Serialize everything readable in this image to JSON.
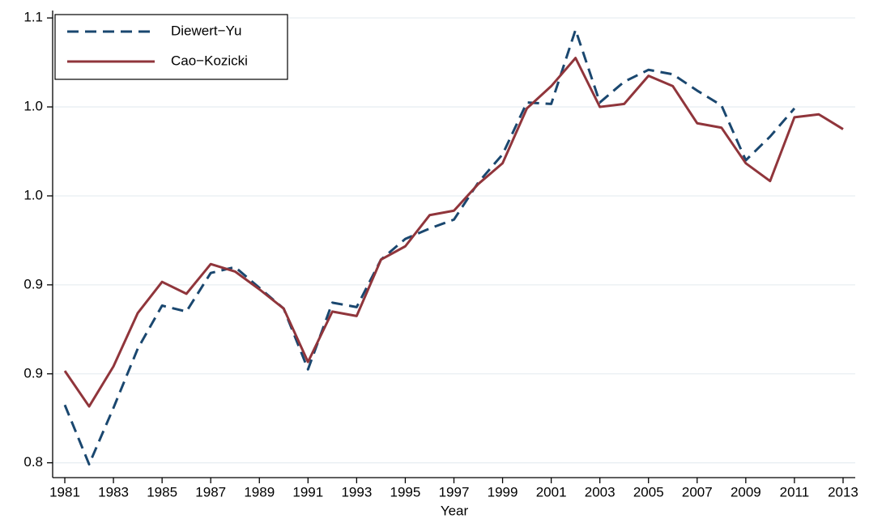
{
  "chart_data": {
    "type": "line",
    "xlabel": "Year",
    "x": [
      1981,
      1982,
      1983,
      1984,
      1985,
      1986,
      1987,
      1988,
      1989,
      1990,
      1991,
      1992,
      1993,
      1994,
      1995,
      1996,
      1997,
      1998,
      1999,
      2000,
      2001,
      2002,
      2003,
      2004,
      2005,
      2006,
      2007,
      2008,
      2009,
      2010,
      2011,
      2012,
      2013
    ],
    "series": [
      {
        "name": "Diewert−Yu",
        "color": "#1a476f",
        "dash": true,
        "values": [
          0.839,
          0.799,
          0.837,
          0.877,
          0.906,
          0.902,
          0.928,
          0.932,
          0.918,
          0.904,
          0.863,
          0.908,
          0.905,
          0.937,
          0.951,
          0.958,
          0.964,
          0.989,
          1.008,
          1.043,
          1.042,
          1.092,
          1.043,
          1.057,
          1.065,
          1.062,
          1.051,
          1.041,
          1.004,
          1.02,
          1.039,
          null,
          null
        ]
      },
      {
        "name": "Cao−Kozicki",
        "color": "#90353b",
        "dash": false,
        "values": [
          0.862,
          0.838,
          0.865,
          0.901,
          0.922,
          0.914,
          0.934,
          0.929,
          0.917,
          0.904,
          0.868,
          0.902,
          0.899,
          0.937,
          0.946,
          0.967,
          0.97,
          0.988,
          1.002,
          1.039,
          1.054,
          1.073,
          1.04,
          1.042,
          1.061,
          1.054,
          1.029,
          1.026,
          1.002,
          0.99,
          1.033,
          1.035,
          1.025
        ]
      }
    ],
    "xlim": [
      1980.5,
      2013.5
    ],
    "xticks": [
      1981,
      1983,
      1985,
      1987,
      1989,
      1991,
      1993,
      1995,
      1997,
      1999,
      2001,
      2003,
      2005,
      2007,
      2009,
      2011,
      2013
    ],
    "ylim": [
      0.79,
      1.105
    ],
    "yticks": [
      0.8,
      {
        "value": 0.86,
        "label": "0.9"
      },
      {
        "value": 0.92,
        "label": "0.9"
      },
      {
        "value": 0.98,
        "label": "1.0"
      },
      {
        "value": 1.04,
        "label": "1.0"
      },
      1.1
    ],
    "grid": true,
    "legend": "top-left"
  }
}
